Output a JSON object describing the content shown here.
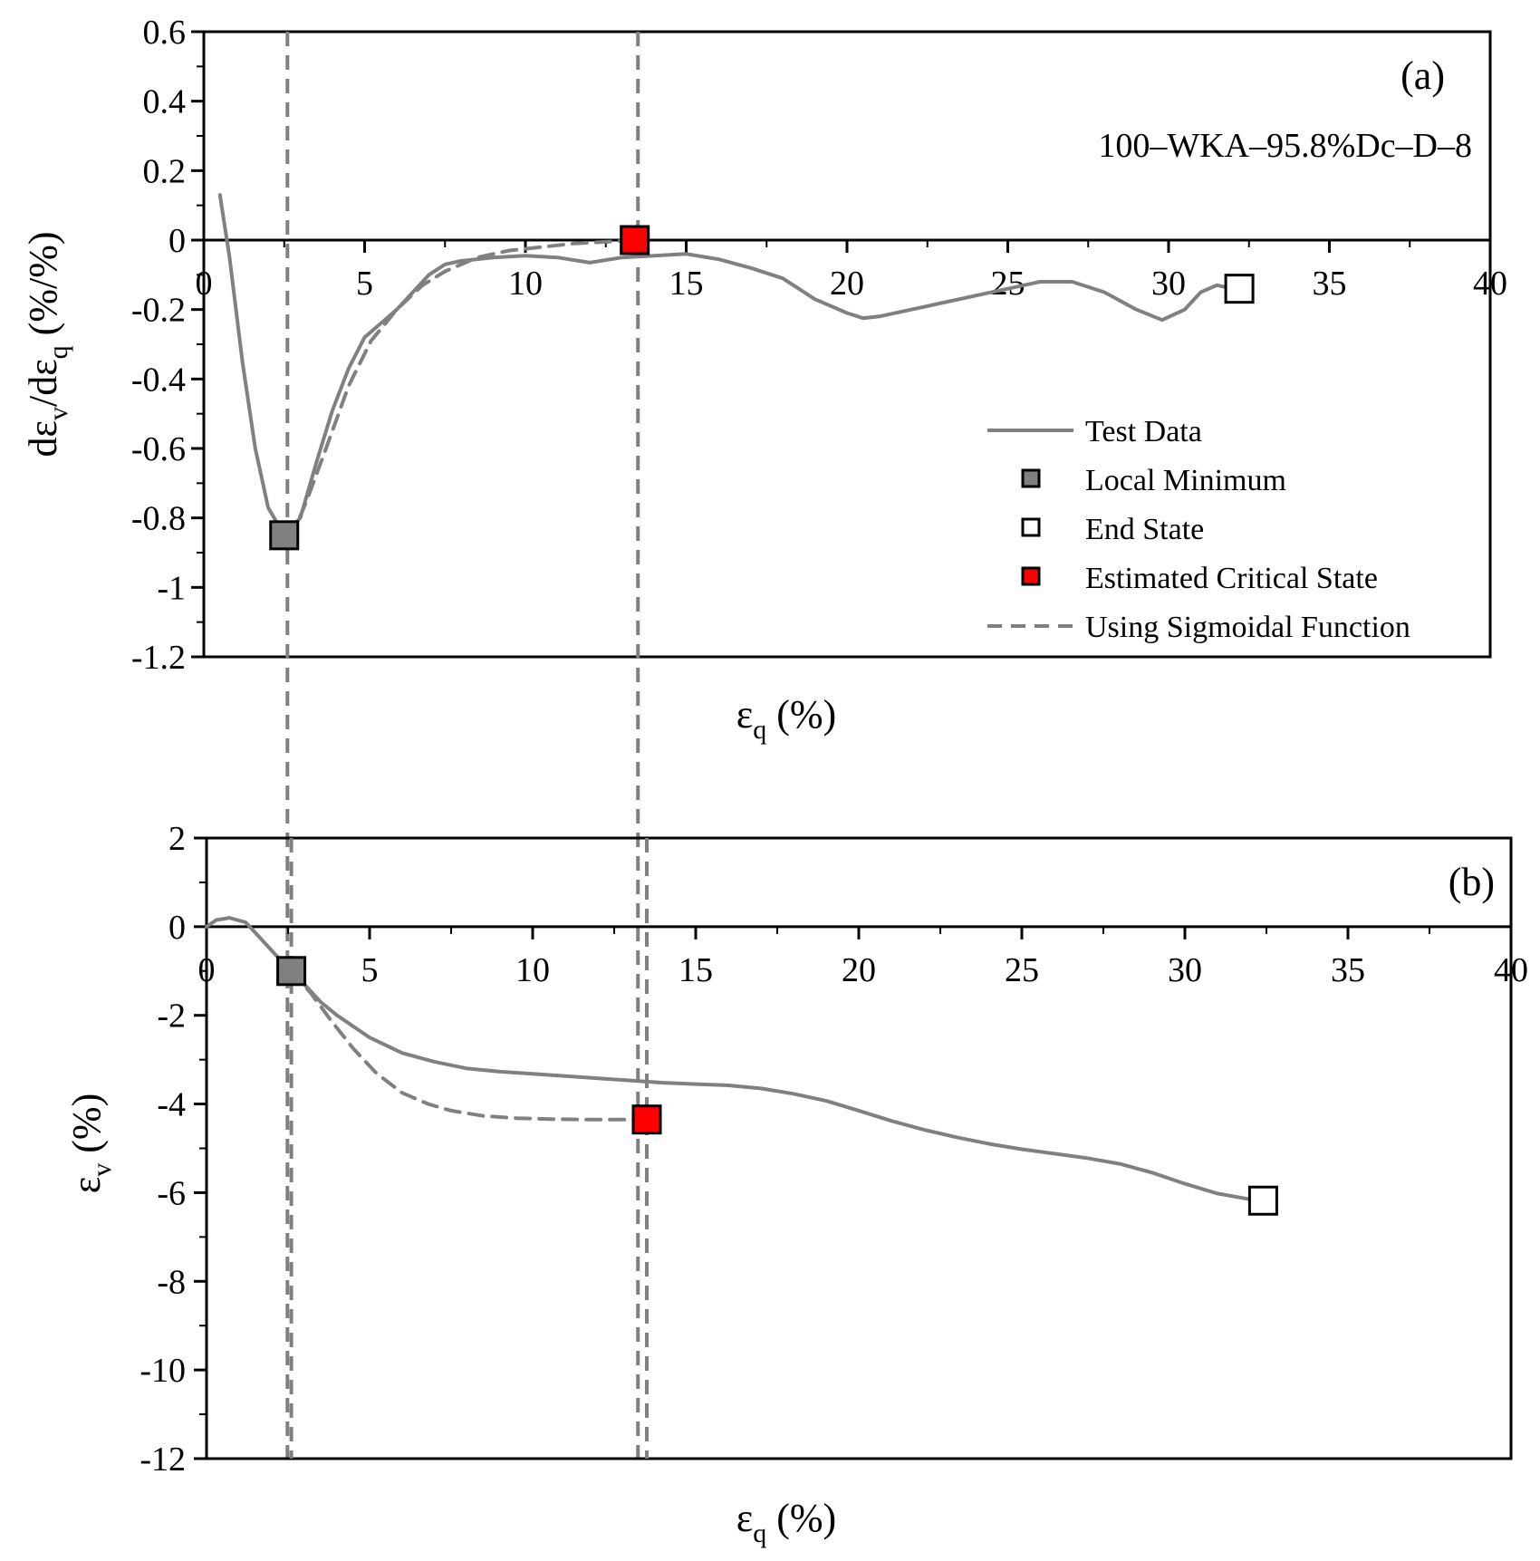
{
  "chart_data": [
    {
      "type": "line",
      "panel_label": "(a)",
      "annotation": "100–WKA–95.8%Dc–D–8",
      "xlabel_main": "ε",
      "xlabel_sub": "q",
      "xlabel_unit": " (%)",
      "ylabel_parts": {
        "d1": "dε",
        "sub1": "v",
        "slash": "/dε",
        "sub2": "q",
        "unit": " (%/%)"
      },
      "xlim": [
        0,
        40
      ],
      "ylim": [
        -1.2,
        0.6
      ],
      "x_ticks": [
        0,
        5,
        10,
        15,
        20,
        25,
        30,
        35,
        40
      ],
      "x_tick_labels": [
        "0",
        "5",
        "10",
        "15",
        "20",
        "25",
        "30",
        "35",
        "40"
      ],
      "y_ticks": [
        0.6,
        0.4,
        0.2,
        0,
        -0.2,
        -0.4,
        -0.6,
        -0.8,
        -1,
        -1.2
      ],
      "y_tick_labels": [
        "0.6",
        "0.4",
        "0.2",
        "0",
        "-0.2",
        "-0.4",
        "-0.6",
        "-0.8",
        "-1",
        "-1.2"
      ],
      "series": [
        {
          "name": "Test Data",
          "style": "solid",
          "color": "#808080",
          "points": [
            [
              0.5,
              0.13
            ],
            [
              0.8,
              -0.05
            ],
            [
              1.2,
              -0.35
            ],
            [
              1.6,
              -0.6
            ],
            [
              2.0,
              -0.77
            ],
            [
              2.5,
              -0.85
            ],
            [
              3.0,
              -0.8
            ],
            [
              3.5,
              -0.64
            ],
            [
              4.0,
              -0.49
            ],
            [
              4.5,
              -0.37
            ],
            [
              5.0,
              -0.28
            ],
            [
              5.5,
              -0.24
            ],
            [
              6.0,
              -0.2
            ],
            [
              6.5,
              -0.15
            ],
            [
              7.0,
              -0.1
            ],
            [
              7.5,
              -0.07
            ],
            [
              8.0,
              -0.06
            ],
            [
              9.0,
              -0.05
            ],
            [
              10.0,
              -0.045
            ],
            [
              11.0,
              -0.05
            ],
            [
              12.0,
              -0.065
            ],
            [
              13.0,
              -0.05
            ],
            [
              14.0,
              -0.045
            ],
            [
              15.0,
              -0.04
            ],
            [
              16.0,
              -0.055
            ],
            [
              17.0,
              -0.08
            ],
            [
              18.0,
              -0.11
            ],
            [
              19.0,
              -0.17
            ],
            [
              20.0,
              -0.21
            ],
            [
              20.5,
              -0.225
            ],
            [
              21.0,
              -0.22
            ],
            [
              22.0,
              -0.2
            ],
            [
              23.0,
              -0.18
            ],
            [
              24.0,
              -0.16
            ],
            [
              25.0,
              -0.14
            ],
            [
              26.0,
              -0.12
            ],
            [
              27.0,
              -0.12
            ],
            [
              28.0,
              -0.15
            ],
            [
              29.0,
              -0.2
            ],
            [
              29.8,
              -0.23
            ],
            [
              30.5,
              -0.2
            ],
            [
              31.0,
              -0.15
            ],
            [
              31.5,
              -0.13
            ],
            [
              32.0,
              -0.14
            ]
          ]
        },
        {
          "name": "Using Sigmoidal Function",
          "style": "dashed",
          "color": "#808080",
          "points": [
            [
              2.7,
              -0.86
            ],
            [
              3.2,
              -0.75
            ],
            [
              3.8,
              -0.6
            ],
            [
              4.5,
              -0.42
            ],
            [
              5.2,
              -0.29
            ],
            [
              6.0,
              -0.2
            ],
            [
              6.8,
              -0.13
            ],
            [
              7.5,
              -0.09
            ],
            [
              8.5,
              -0.05
            ],
            [
              9.5,
              -0.03
            ],
            [
              10.5,
              -0.02
            ],
            [
              11.5,
              -0.01
            ],
            [
              12.5,
              -0.005
            ],
            [
              13.4,
              0.0
            ]
          ]
        }
      ],
      "markers": [
        {
          "name": "Local Minimum",
          "x": 2.5,
          "y": -0.85,
          "fill": "#808080"
        },
        {
          "name": "Estimated Critical State",
          "x": 13.4,
          "y": 0.0,
          "fill": "#ff0000"
        },
        {
          "name": "End State",
          "x": 32.2,
          "y": -0.14,
          "fill": "#ffffff"
        }
      ],
      "vlines": [
        2.6,
        13.5
      ],
      "legend": {
        "position": "bottom-right",
        "entries": [
          {
            "label": "Test Data",
            "kind": "line-solid"
          },
          {
            "label": "Local Minimum",
            "kind": "marker",
            "fill": "#808080"
          },
          {
            "label": "End State",
            "kind": "marker",
            "fill": "#ffffff"
          },
          {
            "label": "Estimated Critical State",
            "kind": "marker",
            "fill": "#ff0000"
          },
          {
            "label": "Using Sigmoidal Function",
            "kind": "line-dashed"
          }
        ]
      }
    },
    {
      "type": "line",
      "panel_label": "(b)",
      "xlabel_main": "ε",
      "xlabel_sub": "q",
      "xlabel_unit": " (%)",
      "ylabel_main": "ε",
      "ylabel_sub": "v",
      "ylabel_unit": " (%)",
      "xlim": [
        0,
        40
      ],
      "ylim": [
        -12,
        2
      ],
      "x_ticks": [
        0,
        5,
        10,
        15,
        20,
        25,
        30,
        35,
        40
      ],
      "x_tick_labels": [
        "0",
        "5",
        "10",
        "15",
        "20",
        "25",
        "30",
        "35",
        "40"
      ],
      "y_ticks": [
        2,
        0,
        -2,
        -4,
        -6,
        -8,
        -10,
        -12
      ],
      "y_tick_labels": [
        "2",
        "0",
        "-2",
        "-4",
        "-6",
        "-8",
        "-10",
        "-12"
      ],
      "series": [
        {
          "name": "Test Data",
          "style": "solid",
          "color": "#808080",
          "points": [
            [
              0,
              0
            ],
            [
              0.3,
              0.15
            ],
            [
              0.7,
              0.2
            ],
            [
              1.2,
              0.1
            ],
            [
              1.7,
              -0.3
            ],
            [
              2.2,
              -0.7
            ],
            [
              2.6,
              -1.0
            ],
            [
              3.0,
              -1.3
            ],
            [
              3.5,
              -1.7
            ],
            [
              4.0,
              -2.0
            ],
            [
              5.0,
              -2.5
            ],
            [
              6.0,
              -2.85
            ],
            [
              7.0,
              -3.05
            ],
            [
              8.0,
              -3.2
            ],
            [
              9.0,
              -3.27
            ],
            [
              10.0,
              -3.32
            ],
            [
              11.0,
              -3.37
            ],
            [
              12.0,
              -3.42
            ],
            [
              13.0,
              -3.47
            ],
            [
              14.0,
              -3.52
            ],
            [
              15.0,
              -3.55
            ],
            [
              16.0,
              -3.58
            ],
            [
              17.0,
              -3.65
            ],
            [
              18.0,
              -3.77
            ],
            [
              19.0,
              -3.93
            ],
            [
              20.0,
              -4.15
            ],
            [
              21.0,
              -4.38
            ],
            [
              22.0,
              -4.58
            ],
            [
              23.0,
              -4.75
            ],
            [
              24.0,
              -4.9
            ],
            [
              25.0,
              -5.02
            ],
            [
              26.0,
              -5.12
            ],
            [
              27.0,
              -5.22
            ],
            [
              28.0,
              -5.35
            ],
            [
              29.0,
              -5.55
            ],
            [
              30.0,
              -5.8
            ],
            [
              31.0,
              -6.02
            ],
            [
              32.0,
              -6.15
            ],
            [
              32.4,
              -6.18
            ]
          ]
        },
        {
          "name": "Using Sigmoidal Function",
          "style": "dashed",
          "color": "#808080",
          "points": [
            [
              2.6,
              -1.0
            ],
            [
              3.2,
              -1.5
            ],
            [
              3.8,
              -2.1
            ],
            [
              4.5,
              -2.75
            ],
            [
              5.2,
              -3.3
            ],
            [
              6.0,
              -3.75
            ],
            [
              6.8,
              -4.0
            ],
            [
              7.5,
              -4.15
            ],
            [
              8.5,
              -4.27
            ],
            [
              9.5,
              -4.32
            ],
            [
              10.5,
              -4.34
            ],
            [
              11.5,
              -4.35
            ],
            [
              12.5,
              -4.35
            ],
            [
              13.5,
              -4.35
            ]
          ]
        }
      ],
      "markers": [
        {
          "name": "Local Minimum",
          "x": 2.6,
          "y": -1.0,
          "fill": "#808080"
        },
        {
          "name": "Estimated Critical State",
          "x": 13.5,
          "y": -4.35,
          "fill": "#ff0000"
        },
        {
          "name": "End State",
          "x": 32.4,
          "y": -6.18,
          "fill": "#ffffff"
        }
      ],
      "vlines": [
        2.6,
        13.5
      ]
    }
  ]
}
